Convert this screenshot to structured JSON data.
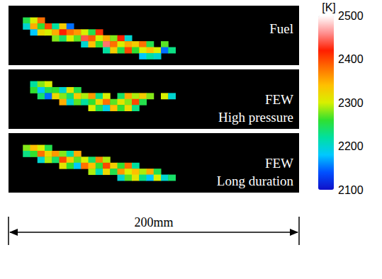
{
  "chart_data": {
    "type": "heatmap",
    "panels": [
      {
        "label": [
          "Fuel"
        ],
        "columns": 40,
        "rows": 10,
        "cells": [
          [
            2,
            2,
            2250
          ],
          [
            2,
            3,
            2200
          ],
          [
            3,
            2,
            2300
          ],
          [
            3,
            3,
            2350
          ],
          [
            3,
            4,
            2180
          ],
          [
            4,
            2,
            2380
          ],
          [
            4,
            3,
            2260
          ],
          [
            4,
            4,
            2320
          ],
          [
            5,
            3,
            2400
          ],
          [
            5,
            4,
            2300
          ],
          [
            6,
            3,
            2220
          ],
          [
            6,
            4,
            2350
          ],
          [
            6,
            5,
            2280
          ],
          [
            7,
            3,
            2330
          ],
          [
            7,
            4,
            2420
          ],
          [
            7,
            5,
            2240
          ],
          [
            8,
            3,
            2150
          ],
          [
            8,
            4,
            2380
          ],
          [
            8,
            5,
            2300
          ],
          [
            9,
            4,
            2360
          ],
          [
            9,
            5,
            2270
          ],
          [
            10,
            4,
            2300
          ],
          [
            10,
            5,
            2440
          ],
          [
            10,
            6,
            2200
          ],
          [
            11,
            4,
            2250
          ],
          [
            11,
            5,
            2390
          ],
          [
            11,
            6,
            2340
          ],
          [
            12,
            4,
            2410
          ],
          [
            12,
            5,
            2300
          ],
          [
            12,
            6,
            2260
          ],
          [
            13,
            5,
            2350
          ],
          [
            13,
            6,
            2450
          ],
          [
            13,
            7,
            2220
          ],
          [
            14,
            5,
            2280
          ],
          [
            14,
            6,
            2380
          ],
          [
            14,
            7,
            2330
          ],
          [
            15,
            5,
            2420
          ],
          [
            15,
            6,
            2300
          ],
          [
            15,
            7,
            2250
          ],
          [
            16,
            5,
            2200
          ],
          [
            16,
            6,
            2350
          ],
          [
            16,
            7,
            2400
          ],
          [
            17,
            6,
            2330
          ],
          [
            17,
            7,
            2260
          ],
          [
            18,
            6,
            2380
          ],
          [
            18,
            7,
            2300
          ],
          [
            18,
            8,
            2180
          ],
          [
            19,
            6,
            2250
          ],
          [
            19,
            7,
            2340
          ],
          [
            19,
            8,
            2220
          ],
          [
            20,
            7,
            2300
          ],
          [
            20,
            8,
            2200
          ],
          [
            21,
            6,
            2270
          ],
          [
            21,
            7,
            2150
          ],
          [
            22,
            7,
            2230
          ]
        ]
      },
      {
        "label": [
          "FEW",
          "High pressure"
        ],
        "columns": 40,
        "rows": 10,
        "cells": [
          [
            3,
            2,
            2220
          ],
          [
            3,
            3,
            2260
          ],
          [
            4,
            2,
            2280
          ],
          [
            4,
            3,
            2180
          ],
          [
            4,
            4,
            2240
          ],
          [
            5,
            2,
            2300
          ],
          [
            5,
            3,
            2250
          ],
          [
            5,
            4,
            2150
          ],
          [
            6,
            3,
            2260
          ],
          [
            6,
            4,
            2320
          ],
          [
            7,
            3,
            2200
          ],
          [
            7,
            4,
            2280
          ],
          [
            7,
            5,
            2350
          ],
          [
            8,
            3,
            2310
          ],
          [
            8,
            4,
            2240
          ],
          [
            8,
            5,
            2200
          ],
          [
            9,
            3,
            2250
          ],
          [
            9,
            4,
            2330
          ],
          [
            9,
            5,
            2270
          ],
          [
            10,
            4,
            2290
          ],
          [
            10,
            5,
            2220
          ],
          [
            11,
            4,
            2360
          ],
          [
            11,
            5,
            2260
          ],
          [
            11,
            6,
            2300
          ],
          [
            12,
            4,
            2230
          ],
          [
            12,
            5,
            2320
          ],
          [
            12,
            6,
            2250
          ],
          [
            13,
            4,
            2300
          ],
          [
            13,
            5,
            2380
          ],
          [
            13,
            6,
            2190
          ],
          [
            14,
            5,
            2270
          ],
          [
            14,
            6,
            2340
          ],
          [
            15,
            4,
            2240
          ],
          [
            15,
            5,
            2310
          ],
          [
            15,
            6,
            2260
          ],
          [
            16,
            4,
            2350
          ],
          [
            16,
            5,
            2280
          ],
          [
            16,
            6,
            2320
          ],
          [
            17,
            4,
            2290
          ],
          [
            17,
            5,
            2400
          ],
          [
            17,
            6,
            2230
          ],
          [
            18,
            4,
            2330
          ],
          [
            18,
            5,
            2250
          ],
          [
            19,
            4,
            2280
          ],
          [
            21,
            4,
            2300
          ],
          [
            22,
            4,
            2200
          ]
        ]
      },
      {
        "label": [
          "FEW",
          "Long duration"
        ],
        "columns": 40,
        "rows": 10,
        "cells": [
          [
            2,
            2,
            2280
          ],
          [
            2,
            3,
            2230
          ],
          [
            3,
            2,
            2340
          ],
          [
            3,
            3,
            2260
          ],
          [
            4,
            2,
            2300
          ],
          [
            4,
            3,
            2380
          ],
          [
            4,
            4,
            2200
          ],
          [
            5,
            2,
            2250
          ],
          [
            5,
            3,
            2320
          ],
          [
            5,
            4,
            2290
          ],
          [
            6,
            3,
            2360
          ],
          [
            6,
            4,
            2240
          ],
          [
            7,
            3,
            2280
          ],
          [
            7,
            4,
            2400
          ],
          [
            7,
            5,
            2310
          ],
          [
            8,
            3,
            2220
          ],
          [
            8,
            4,
            2330
          ],
          [
            8,
            5,
            2260
          ],
          [
            9,
            3,
            2350
          ],
          [
            9,
            4,
            2270
          ],
          [
            9,
            5,
            2180
          ],
          [
            10,
            4,
            2300
          ],
          [
            10,
            5,
            2380
          ],
          [
            11,
            4,
            2240
          ],
          [
            11,
            5,
            2340
          ],
          [
            11,
            6,
            2290
          ],
          [
            12,
            4,
            2370
          ],
          [
            12,
            5,
            2260
          ],
          [
            12,
            6,
            2210
          ],
          [
            13,
            4,
            2290
          ],
          [
            13,
            5,
            2400
          ],
          [
            13,
            6,
            2320
          ],
          [
            14,
            5,
            2330
          ],
          [
            14,
            6,
            2250
          ],
          [
            15,
            5,
            2260
          ],
          [
            15,
            6,
            2360
          ],
          [
            15,
            7,
            2200
          ],
          [
            16,
            5,
            2380
          ],
          [
            16,
            6,
            2300
          ],
          [
            16,
            7,
            2270
          ],
          [
            17,
            5,
            2220
          ],
          [
            17,
            6,
            2340
          ],
          [
            17,
            7,
            2310
          ],
          [
            18,
            6,
            2290
          ],
          [
            18,
            7,
            2230
          ],
          [
            19,
            6,
            2350
          ],
          [
            19,
            7,
            2180
          ],
          [
            20,
            6,
            2250
          ],
          [
            20,
            7,
            2300
          ],
          [
            21,
            7,
            2200
          ],
          [
            22,
            7,
            2240
          ]
        ]
      }
    ],
    "colorbar": {
      "title": "[K]",
      "range": [
        2100,
        2500
      ],
      "ticks": [
        2100,
        2200,
        2300,
        2400,
        2500
      ]
    },
    "scale_bar": {
      "label": "200mm"
    }
  }
}
